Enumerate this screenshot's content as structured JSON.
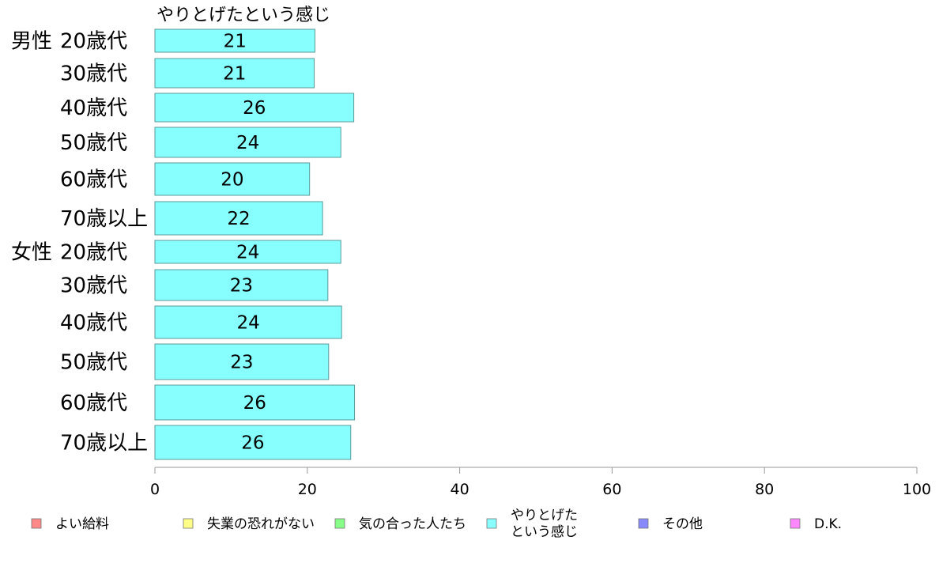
{
  "chart_data": {
    "type": "bar",
    "orientation": "horizontal",
    "title": "",
    "xlabel": "",
    "ylabel": "",
    "xlim": [
      0,
      100
    ],
    "xticks": [
      0,
      20,
      40,
      60,
      80,
      100
    ],
    "grid": false,
    "legend_position": "bottom",
    "groups": [
      {
        "name": "男性",
        "categories": [
          "20歳代",
          "30歳代",
          "40歳代",
          "50歳代",
          "60歳代",
          "70歳以上"
        ]
      },
      {
        "name": "女性",
        "categories": [
          "20歳代",
          "30歳代",
          "40歳代",
          "50歳代",
          "60歳代",
          "70歳以上"
        ]
      }
    ],
    "series": [
      {
        "name": "やりとげたという感じ",
        "color": "#88ffff",
        "values": [
          21,
          21,
          26,
          24,
          20,
          22,
          24,
          23,
          24,
          23,
          26,
          26
        ],
        "lengths": [
          21.0,
          20.9,
          26.1,
          24.4,
          20.3,
          22.0,
          24.4,
          22.7,
          24.5,
          22.8,
          26.2,
          25.7
        ]
      }
    ],
    "legend": [
      {
        "label": "よい給料",
        "color": "#ff8888"
      },
      {
        "label": "失業の恐れがない",
        "color": "#ffff88"
      },
      {
        "label": "気の合った人たち",
        "color": "#88ff88"
      },
      {
        "label": "やりとげた\nという感じ",
        "color": "#88ffff"
      },
      {
        "label": "その他",
        "color": "#8888ff"
      },
      {
        "label": "D.K.",
        "color": "#ff88ff"
      }
    ]
  }
}
